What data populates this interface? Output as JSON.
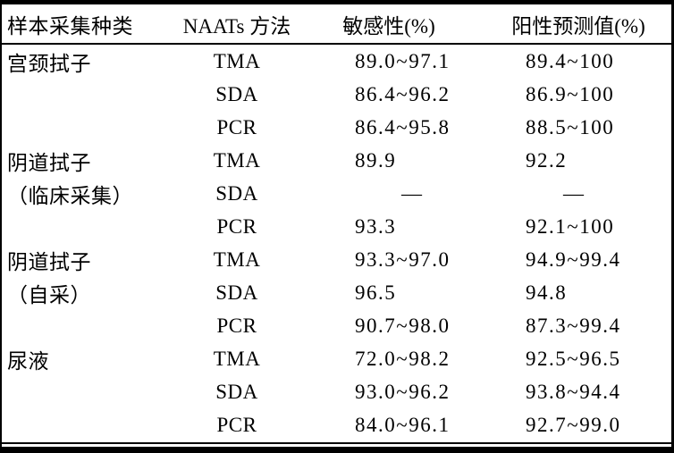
{
  "table": {
    "headers": {
      "sample_type": "样本采集种类",
      "method": "NAATs 方法",
      "sensitivity": "敏感性(%)",
      "ppv": "阳性预测值(%)"
    },
    "rows": [
      {
        "category": "宫颈拭子",
        "method": "TMA",
        "sensitivity": "89.0~97.1",
        "ppv": "89.4~100"
      },
      {
        "category": "",
        "method": "SDA",
        "sensitivity": "86.4~96.2",
        "ppv": "86.9~100"
      },
      {
        "category": "",
        "method": "PCR",
        "sensitivity": "86.4~95.8",
        "ppv": "88.5~100"
      },
      {
        "category": "阴道拭子",
        "method": "TMA",
        "sensitivity": "89.9",
        "ppv": "92.2"
      },
      {
        "category": "（临床采集）",
        "method": "SDA",
        "sensitivity": "—",
        "ppv": "—"
      },
      {
        "category": "",
        "method": "PCR",
        "sensitivity": "93.3",
        "ppv": "92.1~100"
      },
      {
        "category": "阴道拭子",
        "method": "TMA",
        "sensitivity": "93.3~97.0",
        "ppv": "94.9~99.4"
      },
      {
        "category": "（自采）",
        "method": "SDA",
        "sensitivity": "96.5",
        "ppv": "94.8"
      },
      {
        "category": "",
        "method": "PCR",
        "sensitivity": "90.7~98.0",
        "ppv": "87.3~99.4"
      },
      {
        "category": "尿液",
        "method": "TMA",
        "sensitivity": "72.0~98.2",
        "ppv": "92.5~96.5"
      },
      {
        "category": "",
        "method": "SDA",
        "sensitivity": "93.0~96.2",
        "ppv": "93.8~94.4"
      },
      {
        "category": "",
        "method": "PCR",
        "sensitivity": "84.0~96.1",
        "ppv": "92.7~99.0"
      }
    ],
    "missing_value_symbol": "—",
    "colors": {
      "text": "#000000",
      "rule": "#000000",
      "background": "#ffffff"
    }
  }
}
